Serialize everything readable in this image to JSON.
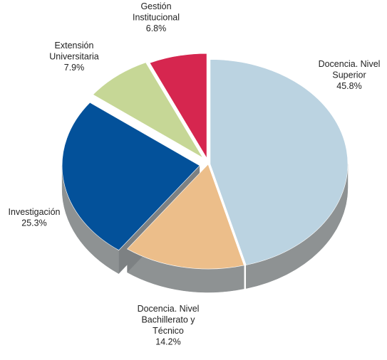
{
  "chart_data": {
    "type": "pie",
    "title": "",
    "style": "3d-exploded",
    "slices": [
      {
        "label_lines": [
          "Docencia. Nivel",
          "Superior"
        ],
        "value": 45.8,
        "value_label": "45.8%",
        "color": "#BBD3E1"
      },
      {
        "label_lines": [
          "Docencia. Nivel",
          "Bachillerato y",
          "Técnico"
        ],
        "value": 14.2,
        "value_label": "14.2%",
        "color": "#ECBE8A"
      },
      {
        "label_lines": [
          "Investigación"
        ],
        "value": 25.3,
        "value_label": "25.3%",
        "color": "#03519A"
      },
      {
        "label_lines": [
          "Extensión",
          "Universitaria"
        ],
        "value": 7.9,
        "value_label": "7.9%",
        "color": "#C6D796"
      },
      {
        "label_lines": [
          "Gestión",
          "Institucional"
        ],
        "value": 6.8,
        "value_label": "6.8%",
        "color": "#D6264F"
      }
    ]
  }
}
